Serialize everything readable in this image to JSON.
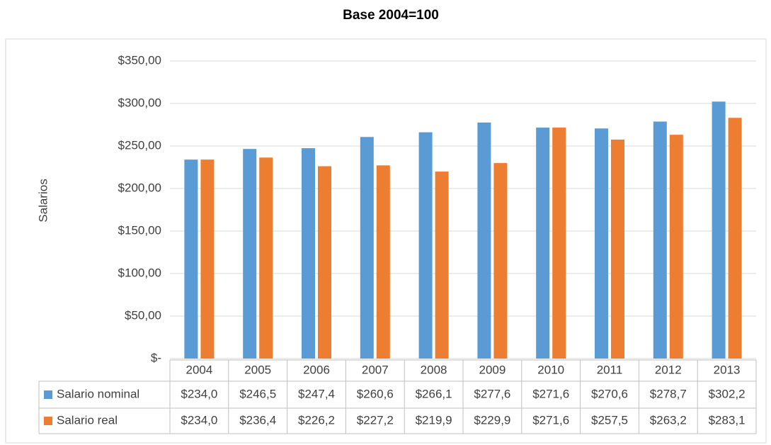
{
  "chart_data": {
    "type": "bar",
    "title": "Base 2004=100",
    "y_label": "Salarios",
    "categories": [
      "2004",
      "2005",
      "2006",
      "2007",
      "2008",
      "2009",
      "2010",
      "2011",
      "2012",
      "2013"
    ],
    "series": [
      {
        "name": "Salario nominal",
        "color": "#5b9bd5",
        "values": [
          234.0,
          246.5,
          247.4,
          260.6,
          266.1,
          277.6,
          271.6,
          270.6,
          278.7,
          302.2
        ],
        "value_labels": [
          "$234,0",
          "$246,5",
          "$247,4",
          "$260,6",
          "$266,1",
          "$277,6",
          "$271,6",
          "$270,6",
          "$278,7",
          "$302,2"
        ]
      },
      {
        "name": "Salario real",
        "color": "#ed7d31",
        "values": [
          234.0,
          236.4,
          226.2,
          227.2,
          219.9,
          229.9,
          271.6,
          257.5,
          263.2,
          283.1
        ],
        "value_labels": [
          "$234,0",
          "$236,4",
          "$226,2",
          "$227,2",
          "$219,9",
          "$229,9",
          "$271,6",
          "$257,5",
          "$263,2",
          "$283,1"
        ]
      }
    ],
    "ylim": [
      0,
      350
    ],
    "yticks": [
      {
        "value": 0,
        "label": "$-"
      },
      {
        "value": 50,
        "label": "$50,00"
      },
      {
        "value": 100,
        "label": "$100,00"
      },
      {
        "value": 150,
        "label": "$150,00"
      },
      {
        "value": 200,
        "label": "$200,00"
      },
      {
        "value": 250,
        "label": "$250,00"
      },
      {
        "value": 300,
        "label": "$300,00"
      },
      {
        "value": 350,
        "label": "$350,00"
      }
    ],
    "grid": true,
    "legend": "data-table"
  }
}
